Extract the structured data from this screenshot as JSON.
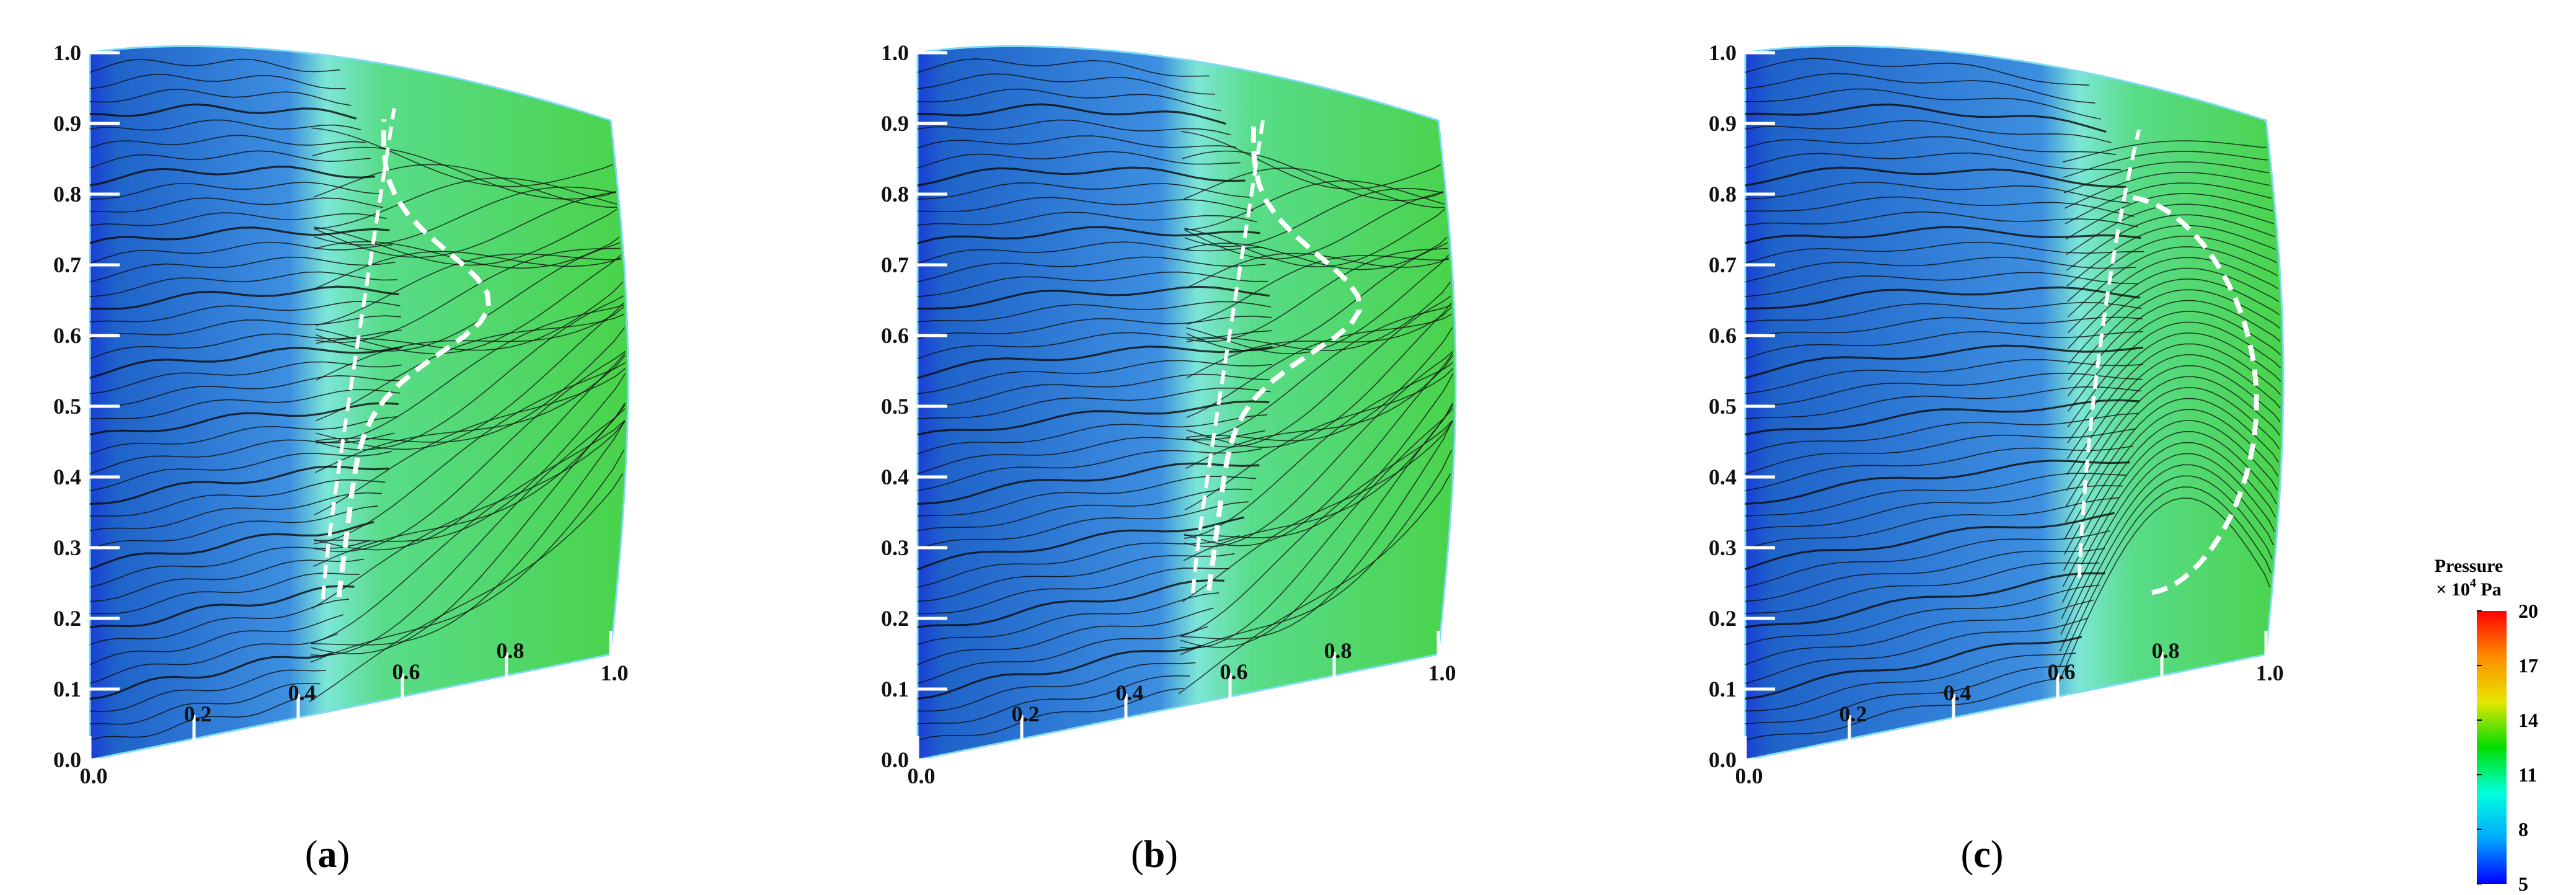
{
  "panels": [
    {
      "id": "a",
      "caption_open": "(",
      "caption_letter": "a",
      "caption_close": ")",
      "left_ticks": [
        "0.0",
        "0.1",
        "0.2",
        "0.3",
        "0.4",
        "0.5",
        "0.6",
        "0.7",
        "0.8",
        "0.9",
        "1.0"
      ],
      "bottom_ticks": [
        "0.0",
        "0.2",
        "0.4",
        "0.6",
        "0.8",
        "1.0"
      ],
      "separation_shape": "narrow",
      "separation_start": 0.42
    },
    {
      "id": "b",
      "caption_open": "(",
      "caption_letter": "b",
      "caption_close": ")",
      "left_ticks": [
        "0.0",
        "0.1",
        "0.2",
        "0.3",
        "0.4",
        "0.5",
        "0.6",
        "0.7",
        "0.8",
        "0.9",
        "1.0"
      ],
      "bottom_ticks": [
        "0.0",
        "0.2",
        "0.4",
        "0.6",
        "0.8",
        "1.0"
      ],
      "separation_shape": "narrow",
      "separation_start": 0.5
    },
    {
      "id": "c",
      "caption_open": "(",
      "caption_letter": "c",
      "caption_close": ")",
      "left_ticks": [
        "0.0",
        "0.1",
        "0.2",
        "0.3",
        "0.4",
        "0.5",
        "0.6",
        "0.7",
        "0.8",
        "0.9",
        "1.0"
      ],
      "bottom_ticks": [
        "0.0",
        "0.2",
        "0.4",
        "0.6",
        "0.8",
        "1.0"
      ],
      "separation_shape": "bubble",
      "separation_start": 0.6
    }
  ],
  "colorbar": {
    "title_line1": "Pressure",
    "title_line2_prefix": "× 10",
    "title_line2_exp": "4",
    "title_line2_suffix": " Pa",
    "ticks": [
      "20",
      "17",
      "14",
      "11",
      "8",
      "5"
    ],
    "colors": [
      "#ff0000",
      "#ff8c00",
      "#e6e600",
      "#00dd00",
      "#00ffdd",
      "#00aaff",
      "#0000ff"
    ]
  },
  "palette": {
    "attached_flow": "#1f63c9",
    "leading_edge": "#1a3fd6",
    "separated_flow": "#49d34a",
    "transition": "#7de6d6",
    "streamline": "#0b0b0b",
    "separation_line": "#ffffff"
  }
}
